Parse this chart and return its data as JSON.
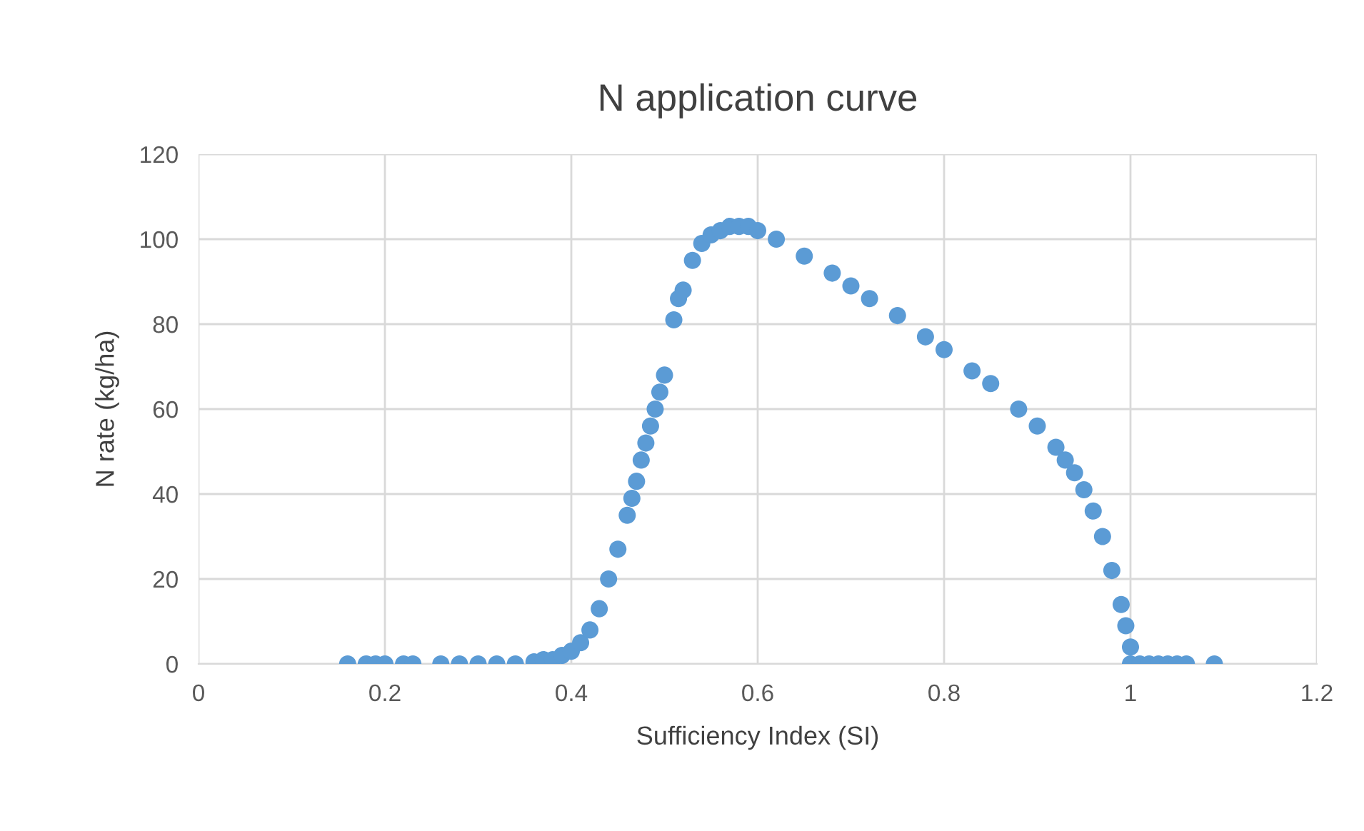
{
  "chart_data": {
    "type": "scatter",
    "title": "N application curve",
    "xlabel": "Sufficiency Index (SI)",
    "ylabel": "N rate (kg/ha)",
    "x": [
      0.16,
      0.18,
      0.19,
      0.2,
      0.22,
      0.23,
      0.26,
      0.28,
      0.3,
      0.32,
      0.34,
      0.36,
      0.37,
      0.38,
      0.39,
      0.4,
      0.41,
      0.42,
      0.43,
      0.44,
      0.45,
      0.46,
      0.465,
      0.47,
      0.475,
      0.48,
      0.485,
      0.49,
      0.495,
      0.5,
      0.51,
      0.515,
      0.52,
      0.53,
      0.54,
      0.55,
      0.56,
      0.57,
      0.58,
      0.59,
      0.6,
      0.62,
      0.65,
      0.68,
      0.7,
      0.72,
      0.75,
      0.78,
      0.8,
      0.83,
      0.85,
      0.88,
      0.9,
      0.92,
      0.93,
      0.94,
      0.95,
      0.96,
      0.97,
      0.98,
      0.99,
      0.995,
      1.0,
      1.0,
      1.01,
      1.02,
      1.03,
      1.04,
      1.05,
      1.06,
      1.09
    ],
    "series": [
      {
        "color": "#5b9bd5",
        "values": [
          0,
          0,
          0,
          0,
          0,
          0,
          0,
          0,
          0,
          0,
          0,
          0.5,
          1,
          1,
          2,
          3,
          5,
          8,
          13,
          20,
          27,
          35,
          39,
          43,
          48,
          52,
          56,
          60,
          64,
          68,
          81,
          86,
          88,
          95,
          99,
          101,
          102,
          103,
          103,
          103,
          102,
          100,
          96,
          92,
          89,
          86,
          82,
          77,
          74,
          69,
          66,
          60,
          56,
          51,
          48,
          45,
          41,
          36,
          30,
          22,
          14,
          9,
          4,
          0,
          0,
          0,
          0,
          0,
          0,
          0,
          0
        ]
      }
    ],
    "xlim": [
      0,
      1.2
    ],
    "xticks": [
      0,
      0.2,
      0.4,
      0.6,
      0.8,
      1,
      1.2
    ],
    "ylim": [
      0,
      120
    ],
    "yticks": [
      0,
      20,
      40,
      60,
      80,
      100,
      120
    ],
    "grid": true,
    "marker": "circle"
  }
}
